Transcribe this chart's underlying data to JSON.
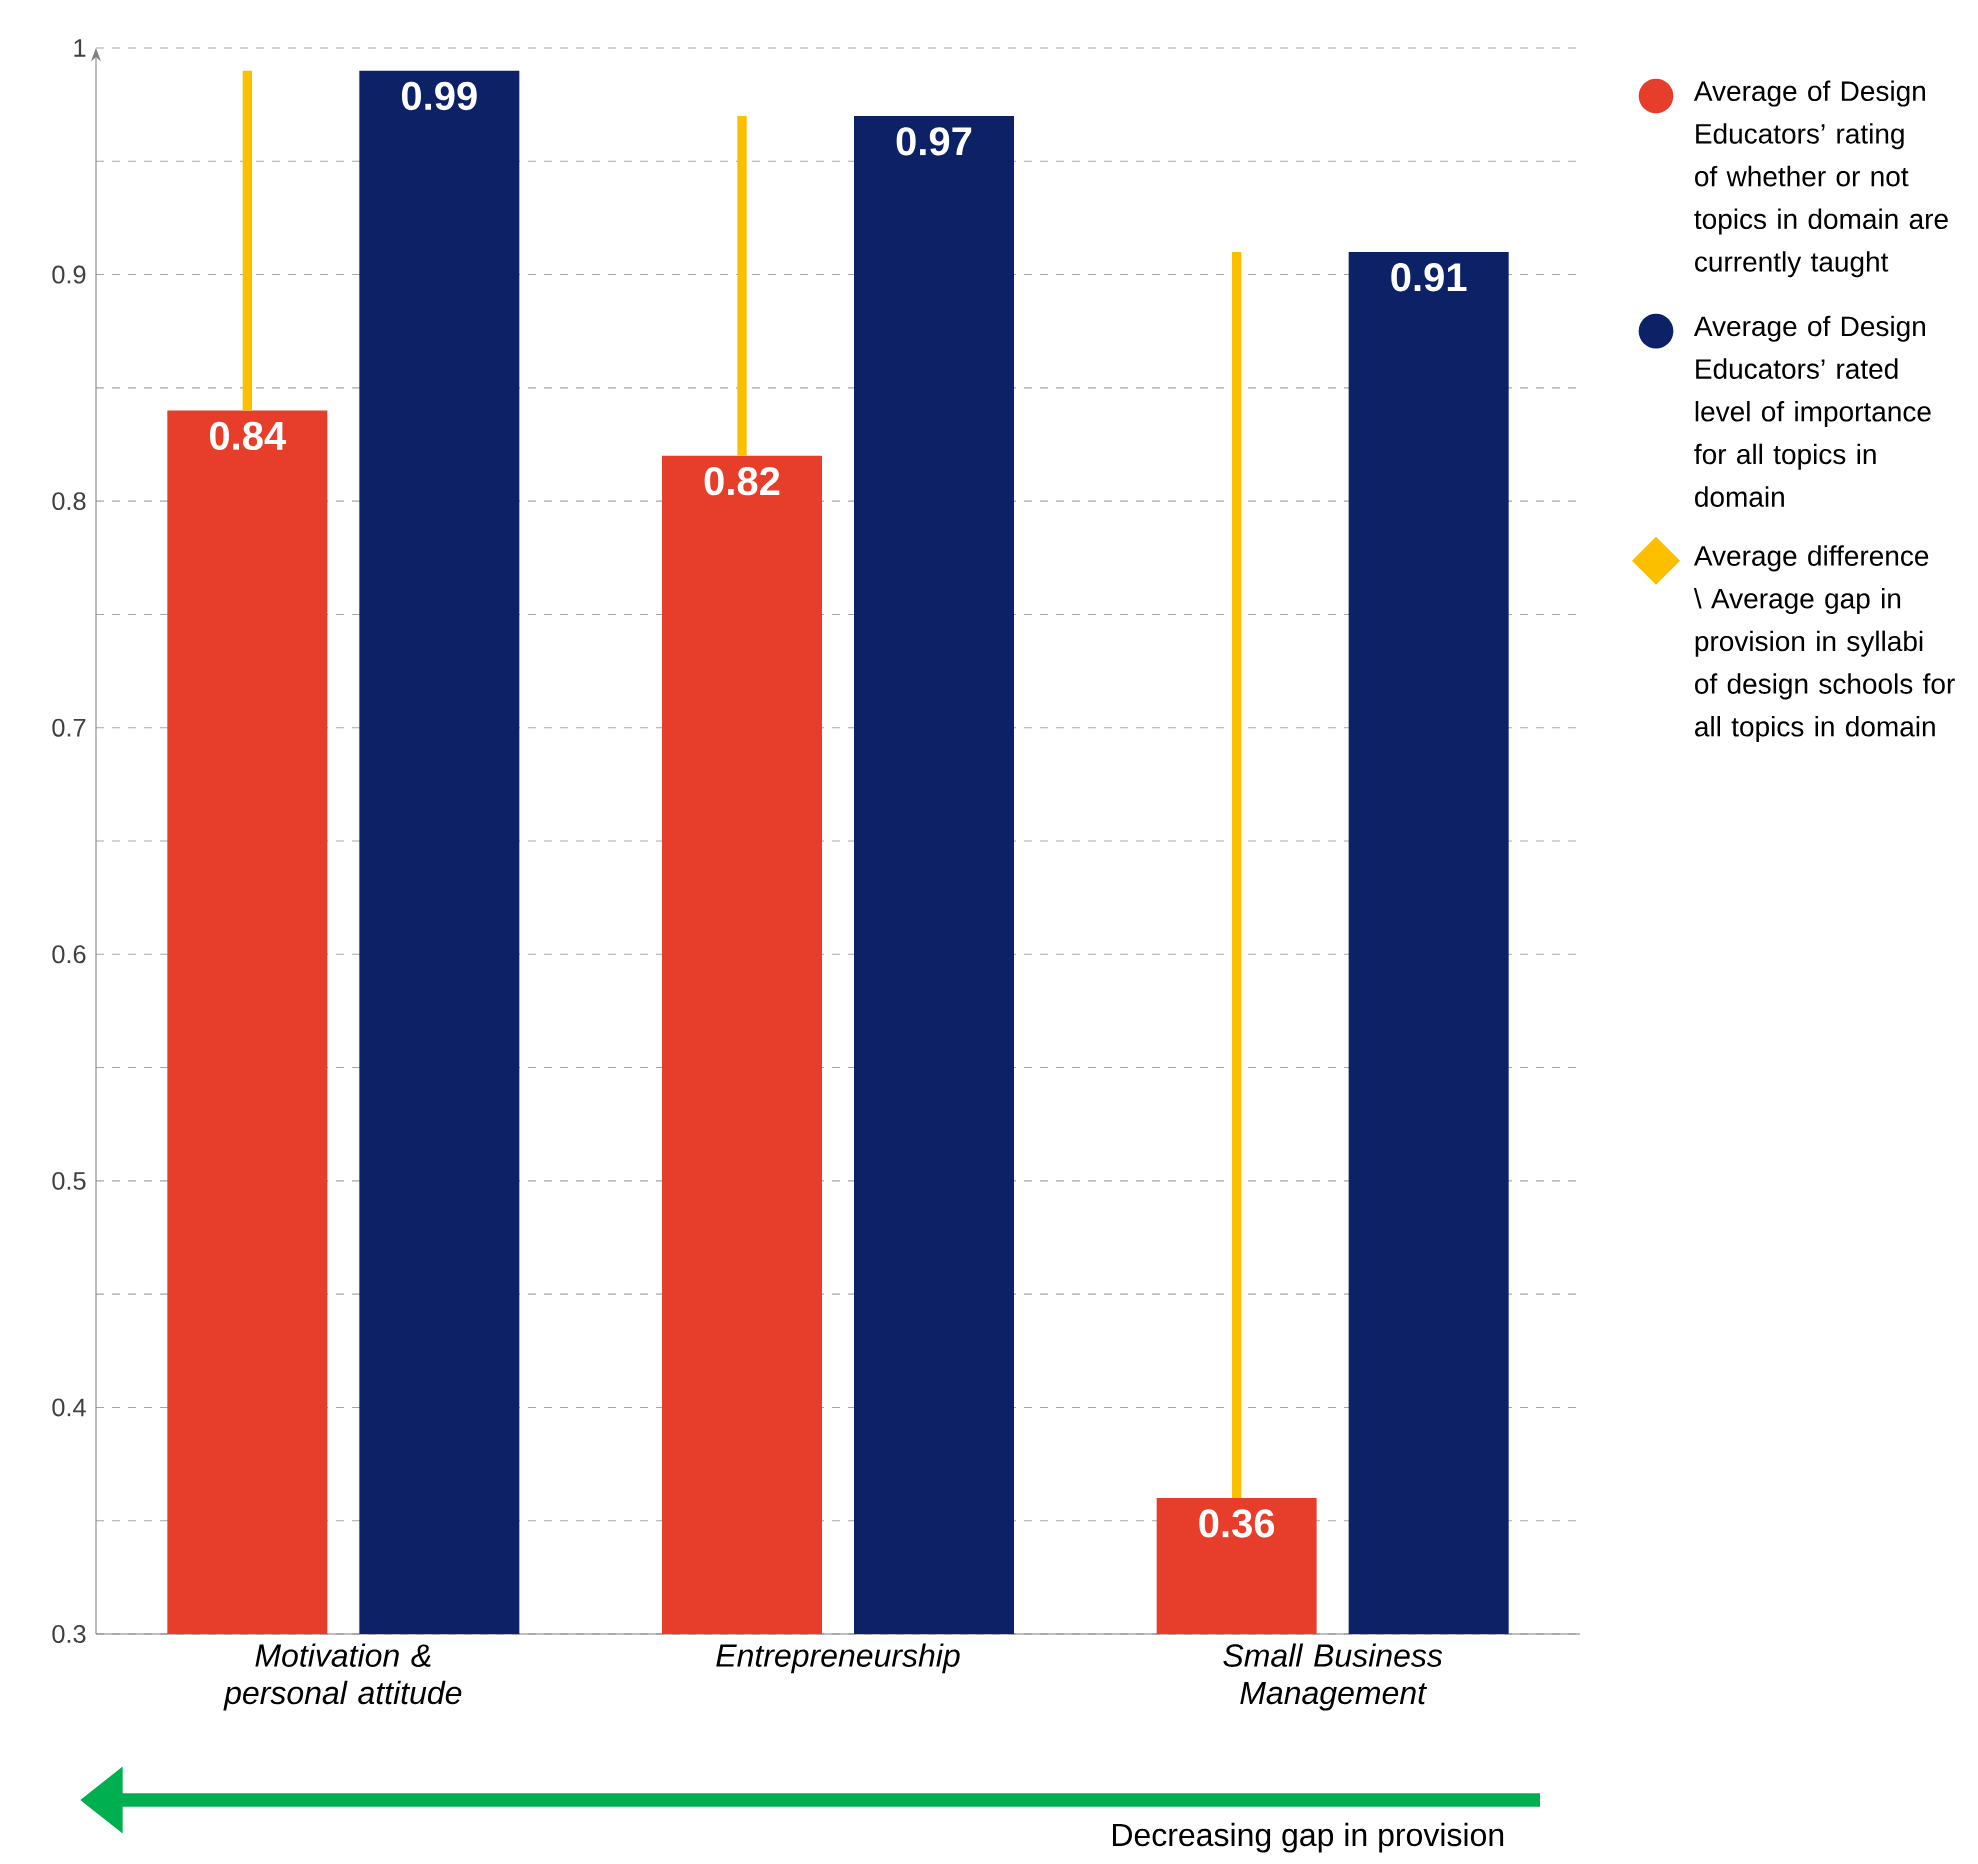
{
  "chart_data": {
    "type": "bar",
    "categories": [
      "Motivation & personal attitude",
      "Entrepreneurship",
      "Small Business Management"
    ],
    "series": [
      {
        "name": "Average of Design Educators’ rating of whether or not topics in domain are currently taught",
        "color": "#e63e2b",
        "values": [
          0.84,
          0.82,
          0.36
        ],
        "value_labels": [
          "0.84",
          "0.82",
          "0.36"
        ]
      },
      {
        "name": "Average of Design Educators’ rated level of importance for all topics in domain",
        "color": "#0d2266",
        "values": [
          0.99,
          0.97,
          0.91
        ],
        "value_labels": [
          "0.99",
          "0.97",
          "0.91"
        ]
      },
      {
        "name": "Average difference \\ Average gap in provision in syllabi of design schools for all topics in domain",
        "color": "#fcbf00",
        "type": "bar",
        "base": [
          0.84,
          0.82,
          0.36
        ],
        "values": [
          0.15,
          0.15,
          0.55
        ],
        "marker": "diamond"
      }
    ],
    "ylim": [
      0.3,
      1
    ],
    "yticks": [
      0.3,
      0.4,
      0.5,
      0.6,
      0.7,
      0.8,
      0.9,
      1
    ],
    "grid": "y",
    "legend": "right",
    "annotations": [
      "Decreasing gap in provision"
    ]
  }
}
